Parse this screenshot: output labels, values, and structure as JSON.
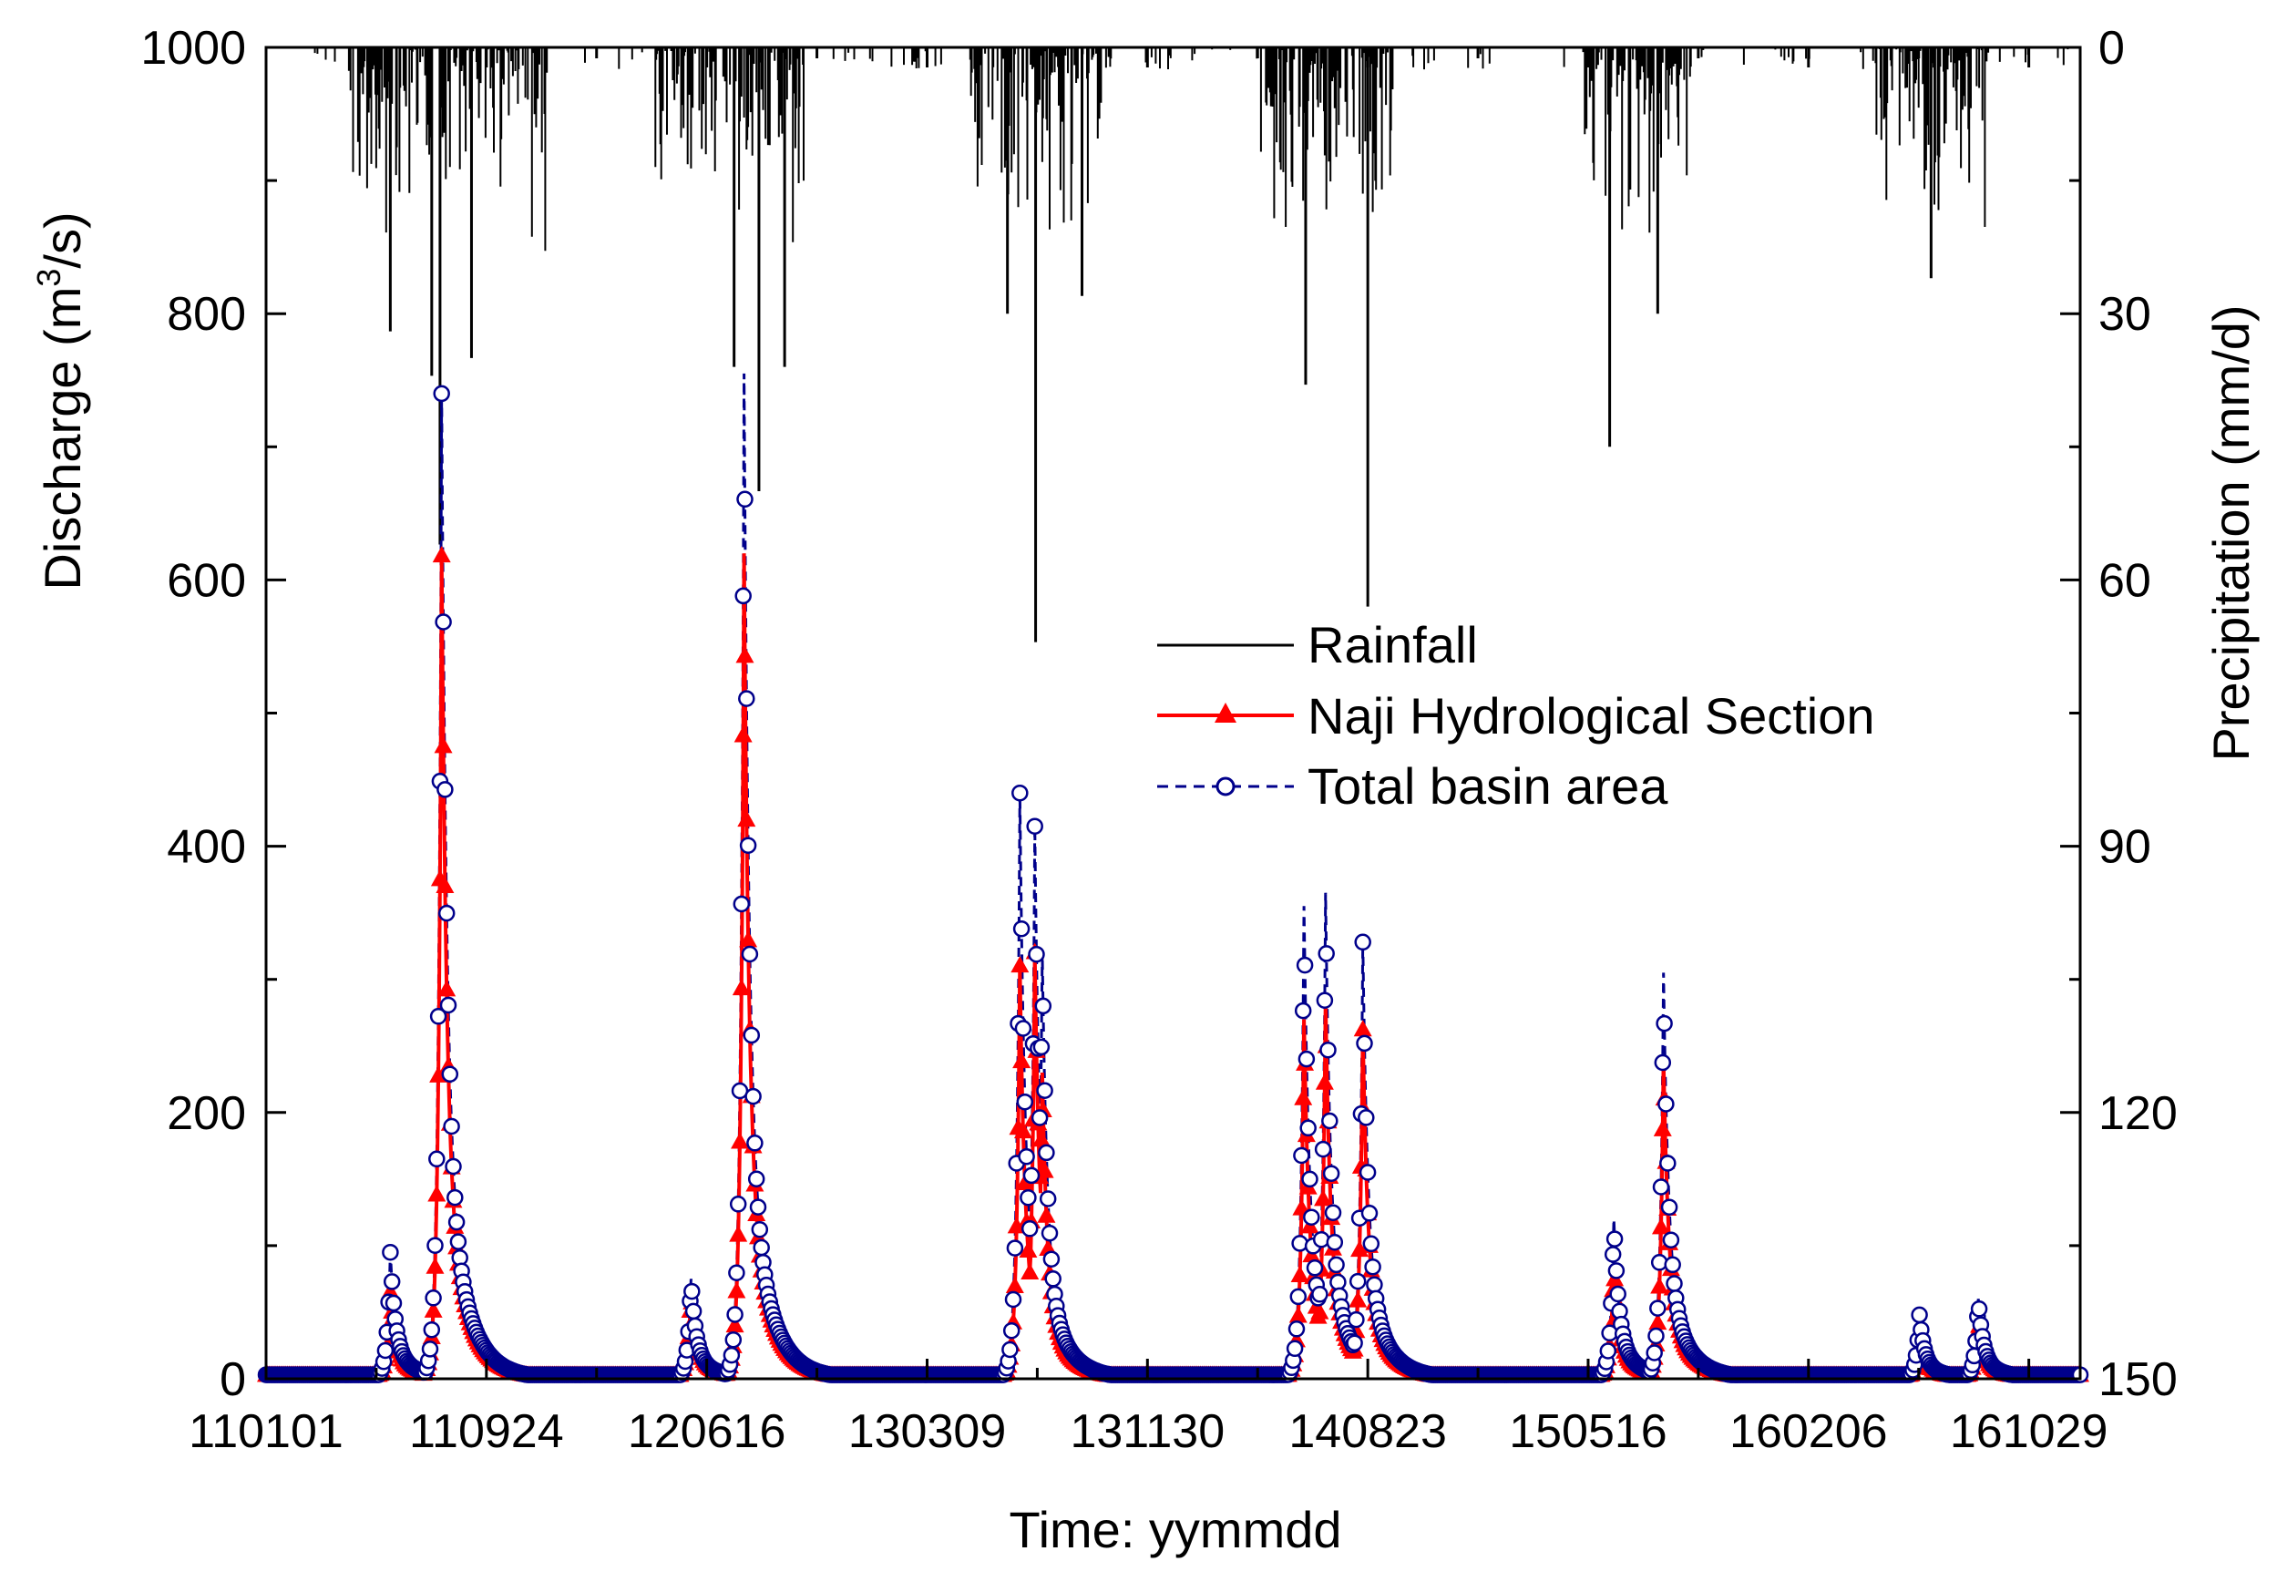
{
  "chart_data": {
    "type": "line",
    "title": "",
    "xlabel": "Time: yymmdd",
    "ylabel_left": "Discharge (m3/s)",
    "ylabel_left_parts": {
      "prefix": "Discharge (m",
      "sup": "3",
      "suffix": "/s)"
    },
    "ylabel_right": "Precipitation (mm/d)",
    "ylim_left": [
      0,
      1000
    ],
    "ylim_right": [
      0,
      150
    ],
    "right_axis_inverted": true,
    "x_range_days": [
      0,
      2190
    ],
    "x_tick_labels": [
      "110101",
      "110924",
      "120616",
      "130309",
      "131130",
      "140823",
      "150516",
      "160206",
      "161029"
    ],
    "x_tick_days": [
      0,
      266,
      532,
      798,
      1064,
      1330,
      1596,
      1862,
      2128
    ],
    "y_left_ticks": [
      0,
      200,
      400,
      600,
      800,
      1000
    ],
    "y_right_ticks": [
      0,
      30,
      60,
      90,
      120,
      150
    ],
    "legend_position": "center-right",
    "colors": {
      "rainfall": "#000000",
      "naji": "#ff0000",
      "total": "#00008b"
    },
    "series": [
      {
        "name": "Rainfall",
        "axis": "right",
        "style": "line"
      },
      {
        "name": "Naji Hydrological Section",
        "axis": "left",
        "style": "line-triangle"
      },
      {
        "name": "Total basin area",
        "axis": "left",
        "style": "dashed-circle"
      }
    ],
    "discharge_peaks": [
      {
        "day": 150,
        "total": 95,
        "naji": 65
      },
      {
        "day": 212,
        "total": 740,
        "naji": 618
      },
      {
        "day": 513,
        "total": 75,
        "naji": 65
      },
      {
        "day": 577,
        "total": 755,
        "naji": 620
      },
      {
        "day": 910,
        "total": 440,
        "naji": 310
      },
      {
        "day": 928,
        "total": 415,
        "naji": 320
      },
      {
        "day": 937,
        "total": 320,
        "naji": 230
      },
      {
        "day": 1253,
        "total": 355,
        "naji": 270
      },
      {
        "day": 1279,
        "total": 365,
        "naji": 285
      },
      {
        "day": 1324,
        "total": 328,
        "naji": 262
      },
      {
        "day": 1627,
        "total": 120,
        "naji": 85
      },
      {
        "day": 1687,
        "total": 305,
        "naji": 240
      },
      {
        "day": 1996,
        "total": 48,
        "naji": 35
      },
      {
        "day": 2067,
        "total": 60,
        "naji": 45
      }
    ],
    "rainfall_peaks": [
      {
        "day": 150,
        "value": 32
      },
      {
        "day": 200,
        "value": 37
      },
      {
        "day": 210,
        "value": 56
      },
      {
        "day": 248,
        "value": 35
      },
      {
        "day": 565,
        "value": 36
      },
      {
        "day": 595,
        "value": 50
      },
      {
        "day": 626,
        "value": 36
      },
      {
        "day": 895,
        "value": 30
      },
      {
        "day": 929,
        "value": 67
      },
      {
        "day": 985,
        "value": 28
      },
      {
        "day": 1255,
        "value": 38
      },
      {
        "day": 1330,
        "value": 63
      },
      {
        "day": 1622,
        "value": 45
      },
      {
        "day": 1680,
        "value": 30
      },
      {
        "day": 2010,
        "value": 26
      }
    ]
  }
}
